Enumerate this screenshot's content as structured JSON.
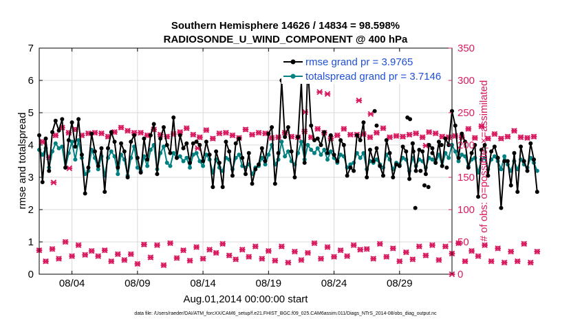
{
  "chart_data": {
    "type": "line",
    "title": "Southern Hemisphere 14626 / 14834 = 98.598%",
    "subtitle": "RADIOSONDE_U_WIND_COMPONENT @ 400 hPa",
    "xlabel": "Aug.01,2014 00:00:00 start",
    "ylabel": "rmse and totalspread",
    "y2label": "# of obs: o=possible; ×=assimilated",
    "footer": "data file: /Users/raeder/DAI/ATM_forcXX/CAM6_setup/f.e21.FHIST_BGC.f09_025.CAM6assim.011/Diags_NTrS_2014-08/obs_diag_output.nc",
    "xlim": [
      1,
      32.5
    ],
    "ylim": [
      0,
      7
    ],
    "y2lim": [
      0,
      350
    ],
    "x_ticks": [
      3.5,
      8.5,
      13.5,
      18.5,
      23.5,
      28.5
    ],
    "x_tick_labels": [
      "08/04",
      "08/09",
      "08/14",
      "08/19",
      "08/24",
      "08/29"
    ],
    "y_ticks": [
      "0",
      "1",
      "2",
      "3",
      "4",
      "5",
      "6",
      "7"
    ],
    "y2_ticks": [
      "0",
      "50",
      "100",
      "150",
      "200",
      "250",
      "300",
      "350"
    ],
    "colors": {
      "rmse": "#000000",
      "spread": "#008080",
      "obs": "#d81b60"
    },
    "series": [
      {
        "name": "rmse",
        "legend": "rmse grand pr = 3.9765",
        "x0": 1.0,
        "dx": 0.25,
        "values": [
          4.3,
          2.85,
          4.2,
          3.2,
          4.4,
          4.75,
          4.45,
          4.8,
          3.3,
          4.15,
          4.7,
          3.95,
          4.8,
          3.7,
          2.5,
          3.3,
          4.35,
          3.8,
          3.35,
          3.9,
          2.55,
          3.9,
          4.4,
          4.1,
          3.3,
          4.05,
          3.8,
          3.0,
          4.1,
          4.3,
          3.6,
          3.15,
          4.2,
          3.55,
          4.3,
          4.65,
          3.1,
          4.2,
          4.55,
          4.0,
          3.75,
          4.85,
          3.6,
          4.3,
          3.9,
          4.05,
          3.45,
          4.05,
          4.1,
          4.0,
          3.5,
          4.1,
          3.7,
          2.7,
          3.8,
          3.45,
          2.7,
          4.1,
          3.8,
          3.05,
          4.05,
          4.2,
          3.6,
          3.1,
          3.75,
          2.8,
          3.25,
          3.4,
          3.9,
          3.5,
          4.35,
          4.55,
          2.8,
          3.75,
          6.0,
          4.25,
          4.55,
          3.8,
          3.0,
          4.25,
          5.95,
          3.45,
          6.45,
          4.6,
          4.15,
          4.2,
          4.0,
          4.4,
          3.75,
          4.3,
          3.7,
          3.5,
          4.15,
          4.0,
          3.05,
          3.3,
          3.2,
          4.3,
          4.15,
          4.7,
          3.0,
          3.85,
          3.5,
          3.9,
          3.35,
          3.05,
          4.15,
          3.75,
          3.0,
          3.4,
          3.35,
          3.95,
          3.8,
          2.95,
          4.05,
          3.2,
          3.85,
          3.8,
          3.1,
          4.0,
          3.9,
          3.45,
          4.1,
          3.35,
          4.2,
          4.0,
          5.05,
          4.6,
          3.6,
          4.35,
          4.1,
          3.3,
          3.75,
          4.0,
          2.4,
          3.85,
          4.0,
          3.05,
          3.8,
          3.95,
          3.6,
          2.05,
          3.5,
          3.5,
          2.75,
          3.75,
          2.55,
          3.95,
          3.5,
          3.2,
          4.05,
          3.55,
          2.55
        ],
        "extra_points": [
          {
            "x": 26.6,
            "y": 5.05
          },
          {
            "x": 26.75,
            "y": 4.6
          },
          {
            "x": 29.1,
            "y": 4.85
          },
          {
            "x": 29.3,
            "y": 4.8
          },
          {
            "x": 29.5,
            "y": 4.05
          },
          {
            "x": 29.55,
            "y": 3.8
          },
          {
            "x": 29.7,
            "y": 2.05
          },
          {
            "x": 30.1,
            "y": 3.2
          },
          {
            "x": 30.4,
            "y": 2.75
          },
          {
            "x": 30.7,
            "y": 2.7
          },
          {
            "x": 31.0,
            "y": 3.75
          },
          {
            "x": 31.7,
            "y": 4.0
          },
          {
            "x": 32.1,
            "y": 3.3
          }
        ]
      },
      {
        "name": "totalspread",
        "legend": "totalspread grand pr = 3.7146",
        "x0": 1.0,
        "dx": 0.25,
        "values": [
          3.85,
          3.7,
          3.9,
          3.3,
          3.8,
          4.05,
          3.9,
          3.95,
          3.3,
          3.75,
          4.1,
          3.55,
          4.15,
          3.6,
          3.1,
          3.2,
          3.85,
          3.6,
          3.25,
          3.65,
          3.05,
          3.6,
          3.8,
          3.65,
          3.1,
          3.7,
          3.55,
          3.05,
          3.6,
          3.95,
          3.3,
          3.2,
          3.65,
          3.35,
          3.85,
          4.0,
          3.25,
          3.75,
          3.95,
          3.45,
          3.35,
          3.75,
          3.6,
          3.65,
          3.5,
          3.6,
          3.3,
          3.7,
          3.75,
          3.5,
          3.35,
          3.7,
          3.55,
          3.15,
          3.55,
          3.3,
          3.2,
          3.6,
          3.55,
          3.25,
          3.6,
          3.7,
          3.35,
          3.3,
          3.4,
          3.1,
          3.3,
          3.35,
          3.6,
          3.4,
          3.7,
          4.0,
          3.4,
          3.55,
          4.1,
          3.65,
          3.8,
          3.5,
          3.4,
          3.75,
          4.1,
          3.55,
          4.0,
          3.85,
          3.75,
          3.9,
          3.7,
          3.85,
          3.55,
          3.8,
          3.6,
          3.45,
          3.7,
          3.65,
          3.3,
          3.4,
          3.45,
          3.75,
          3.6,
          3.75,
          3.25,
          3.5,
          3.45,
          3.55,
          3.4,
          3.3,
          3.7,
          3.55,
          3.25,
          3.45,
          3.4,
          3.6,
          3.55,
          3.2,
          3.6,
          3.35,
          3.55,
          3.5,
          3.3,
          3.6,
          3.55,
          3.45,
          3.7,
          3.35,
          3.75,
          3.6,
          4.0,
          3.8,
          3.5,
          3.7,
          3.65,
          3.35,
          3.55,
          3.6,
          3.15,
          3.55,
          3.6,
          3.25,
          3.55,
          3.65,
          3.5,
          3.25,
          3.65,
          3.4,
          3.2,
          3.5,
          3.25,
          3.55,
          3.4,
          3.3,
          3.6,
          3.45,
          3.2
        ]
      }
    ],
    "obs_possible": {
      "x0": 1.0,
      "dx": 0.25,
      "values": [
        37,
        205,
        20,
        181,
        39,
        215,
        24,
        227,
        50,
        219,
        28,
        224,
        45,
        215,
        30,
        218,
        36,
        219,
        28,
        218,
        37,
        213,
        20,
        220,
        31,
        227,
        22,
        222,
        31,
        219,
        16,
        219,
        46,
        215,
        26,
        224,
        45,
        216,
        14,
        213,
        48,
        217,
        25,
        220,
        37,
        226,
        21,
        216,
        42,
        212,
        24,
        223,
        38,
        210,
        33,
        218,
        47,
        219,
        29,
        215,
        23,
        211,
        38,
        224,
        27,
        216,
        43,
        219,
        24,
        218,
        36,
        211,
        21,
        212,
        43,
        219,
        18,
        213,
        35,
        212,
        22,
        221,
        33,
        212,
        48,
        225,
        24,
        219,
        42,
        210,
        27,
        215,
        37,
        225,
        28,
        216,
        45,
        216,
        38,
        217,
        39,
        212,
        24,
        219,
        47,
        226,
        27,
        212,
        40,
        214,
        20,
        213,
        34,
        216,
        23,
        218,
        43,
        212,
        29,
        220,
        45,
        218,
        22,
        213,
        43,
        212,
        32,
        214,
        48,
        212,
        20,
        225,
        36,
        211,
        28,
        229,
        45,
        210,
        20,
        217,
        40,
        210,
        18,
        213,
        35,
        222,
        20,
        212,
        47,
        211,
        18,
        213,
        35
      ]
    },
    "obs_assimilated": {
      "x0": 1.0,
      "dx": 0.25,
      "values": [
        37,
        205,
        20,
        181,
        39,
        215,
        24,
        227,
        50,
        219,
        28,
        224,
        45,
        215,
        30,
        218,
        36,
        219,
        28,
        218,
        37,
        213,
        20,
        220,
        31,
        227,
        22,
        222,
        31,
        219,
        16,
        219,
        46,
        215,
        26,
        224,
        45,
        216,
        14,
        213,
        48,
        217,
        25,
        220,
        37,
        226,
        21,
        216,
        42,
        212,
        24,
        223,
        38,
        210,
        33,
        218,
        47,
        219,
        29,
        215,
        23,
        211,
        38,
        224,
        27,
        216,
        43,
        219,
        24,
        218,
        36,
        211,
        21,
        212,
        43,
        219,
        18,
        213,
        35,
        212,
        22,
        221,
        33,
        212,
        48,
        225,
        24,
        219,
        42,
        210,
        27,
        215,
        37,
        225,
        28,
        216,
        45,
        216,
        38,
        217,
        39,
        212,
        24,
        219,
        47,
        226,
        27,
        212,
        40,
        214,
        20,
        213,
        34,
        216,
        23,
        218,
        43,
        212,
        29,
        220,
        45,
        218,
        22,
        213,
        43,
        212,
        32,
        214,
        48,
        212,
        20,
        225,
        36,
        211,
        28,
        229,
        45,
        210,
        20,
        217,
        40,
        210,
        18,
        213,
        35,
        222,
        20,
        212,
        47,
        211,
        18,
        213,
        35
      ],
      "extra": [
        {
          "x": 22.4,
          "y": 282
        },
        {
          "x": 23.0,
          "y": 279
        },
        {
          "x": 21.3,
          "y": 251
        },
        {
          "x": 25.4,
          "y": 269
        },
        {
          "x": 26.3,
          "y": 248
        },
        {
          "x": 2.1,
          "y": 142
        },
        {
          "x": 3.3,
          "y": 164
        },
        {
          "x": 13.1,
          "y": 195
        },
        {
          "x": 30.5,
          "y": 199
        },
        {
          "x": 32.5,
          "y": 0
        }
      ]
    }
  }
}
